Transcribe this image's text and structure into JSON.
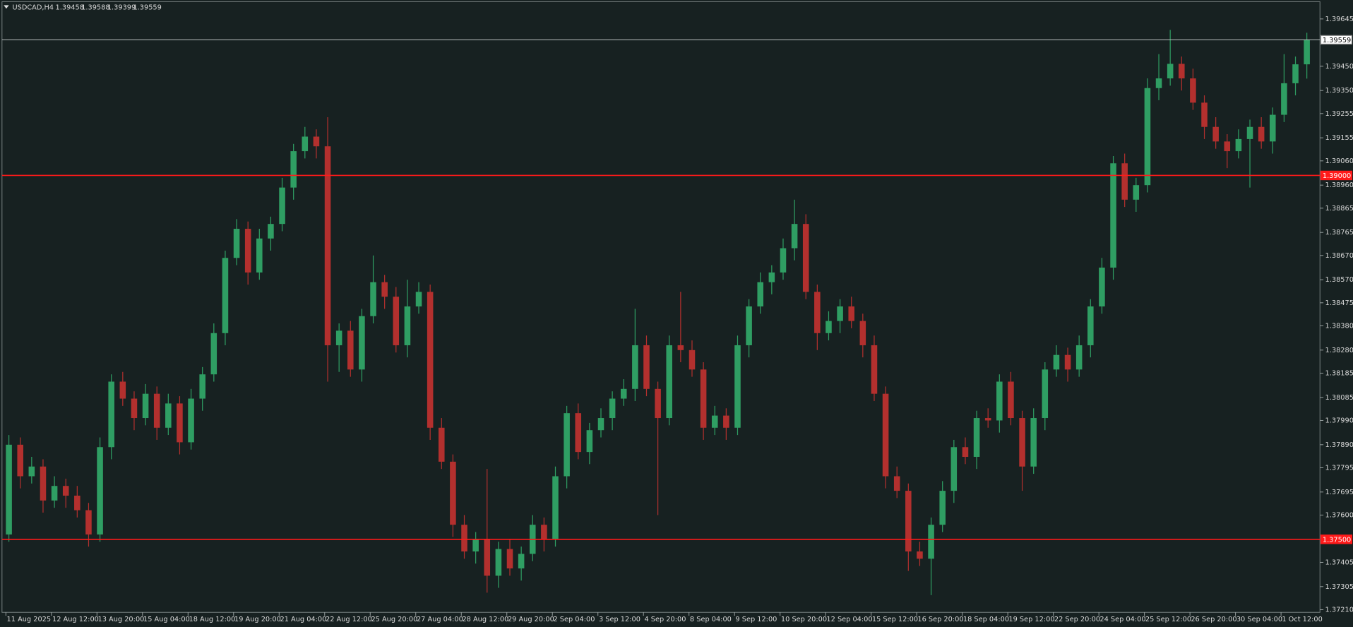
{
  "header": {
    "symbol": "USDCAD,H4",
    "ohlc": [
      1.39458,
      1.39588,
      1.39399,
      1.39559
    ]
  },
  "chart_data": {
    "type": "candlestick",
    "up_color": "#2f9e63",
    "down_color": "#b3302e",
    "grid": false,
    "ylim": [
      1.37199,
      1.39716
    ],
    "yticks": [
      {
        "value": 1.39645,
        "label": "1.39645"
      },
      {
        "value": 1.3945,
        "label": "1.39450"
      },
      {
        "value": 1.3935,
        "label": "1.39350"
      },
      {
        "value": 1.39255,
        "label": "1.39255"
      },
      {
        "value": 1.39155,
        "label": "1.39155"
      },
      {
        "value": 1.3906,
        "label": "1.39060"
      },
      {
        "value": 1.3896,
        "label": "1.38960"
      },
      {
        "value": 1.38865,
        "label": "1.38865"
      },
      {
        "value": 1.38765,
        "label": "1.38765"
      },
      {
        "value": 1.3867,
        "label": "1.38670"
      },
      {
        "value": 1.3857,
        "label": "1.38570"
      },
      {
        "value": 1.38475,
        "label": "1.38475"
      },
      {
        "value": 1.3838,
        "label": "1.38380"
      },
      {
        "value": 1.3828,
        "label": "1.38280"
      },
      {
        "value": 1.38185,
        "label": "1.38185"
      },
      {
        "value": 1.38085,
        "label": "1.38085"
      },
      {
        "value": 1.3799,
        "label": "1.37990"
      },
      {
        "value": 1.3789,
        "label": "1.37890"
      },
      {
        "value": 1.37795,
        "label": "1.37795"
      },
      {
        "value": 1.37695,
        "label": "1.37695"
      },
      {
        "value": 1.376,
        "label": "1.37600"
      },
      {
        "value": 1.37405,
        "label": "1.37405"
      },
      {
        "value": 1.37305,
        "label": "1.37305"
      },
      {
        "value": 1.3721,
        "label": "1.37210"
      }
    ],
    "price_lines": [
      {
        "value": 1.39559,
        "color": "#b8c0c0"
      },
      {
        "value": 1.39,
        "label": "1.39000",
        "color": "#ff1a1a"
      },
      {
        "value": 1.375,
        "label": "1.37500",
        "color": "#ff1a1a"
      }
    ],
    "categories": [
      "11 Aug 2025",
      null,
      null,
      null,
      "12 Aug 12:00",
      null,
      null,
      null,
      "13 Aug 20:00",
      null,
      null,
      null,
      "15 Aug 04:00",
      null,
      null,
      null,
      "18 Aug 12:00",
      null,
      null,
      null,
      "19 Aug 20:00",
      null,
      null,
      null,
      "21 Aug 04:00",
      null,
      null,
      null,
      "22 Aug 12:00",
      null,
      null,
      null,
      "25 Aug 20:00",
      null,
      null,
      null,
      "27 Aug 04:00",
      null,
      null,
      null,
      "28 Aug 12:00",
      null,
      null,
      null,
      "29 Aug 20:00",
      null,
      null,
      null,
      "2 Sep 04:00",
      null,
      null,
      null,
      "3 Sep 12:00",
      null,
      null,
      null,
      "4 Sep 20:00",
      null,
      null,
      null,
      "8 Sep 04:00",
      null,
      null,
      null,
      "9 Sep 12:00",
      null,
      null,
      null,
      "10 Sep 20:00",
      null,
      null,
      null,
      "12 Sep 04:00",
      null,
      null,
      null,
      "15 Sep 12:00",
      null,
      null,
      null,
      "16 Sep 20:00",
      null,
      null,
      null,
      "18 Sep 04:00",
      null,
      null,
      null,
      "19 Sep 12:00",
      null,
      null,
      null,
      "22 Sep 20:00",
      null,
      null,
      null,
      "24 Sep 04:00",
      null,
      null,
      null,
      "25 Sep 12:00",
      null,
      null,
      null,
      "26 Sep 20:00",
      null,
      null,
      null,
      "30 Sep 04:00",
      null,
      null,
      null,
      "1 Oct 12:00",
      null,
      null
    ],
    "open": [
      1.3752,
      1.3789,
      1.3776,
      1.378,
      1.3766,
      1.3772,
      1.3768,
      1.3762,
      1.3752,
      1.3788,
      1.3815,
      1.3808,
      1.38,
      1.381,
      1.3796,
      1.3806,
      1.379,
      1.3808,
      1.3818,
      1.3835,
      1.3866,
      1.3878,
      1.386,
      1.3874,
      1.388,
      1.3895,
      1.391,
      1.3916,
      1.3912,
      1.383,
      1.3836,
      1.382,
      1.3842,
      1.3856,
      1.385,
      1.383,
      1.3846,
      1.3852,
      1.3796,
      1.3782,
      1.3756,
      1.3745,
      1.375,
      1.3735,
      1.3746,
      1.3738,
      1.3744,
      1.3756,
      1.375,
      1.3776,
      1.3802,
      1.3786,
      1.3795,
      1.38,
      1.3808,
      1.3812,
      1.383,
      1.3812,
      1.38,
      1.383,
      1.3828,
      1.382,
      1.3796,
      1.3801,
      1.3796,
      1.383,
      1.3846,
      1.3856,
      1.386,
      1.387,
      1.388,
      1.3852,
      1.3835,
      1.384,
      1.3846,
      1.384,
      1.383,
      1.381,
      1.3776,
      1.377,
      1.3745,
      1.3742,
      1.3756,
      1.377,
      1.3788,
      1.3784,
      1.38,
      1.3799,
      1.3815,
      1.38,
      1.378,
      1.38,
      1.382,
      1.3826,
      1.382,
      1.383,
      1.3846,
      1.3862,
      1.3905,
      1.389,
      1.3896,
      1.3936,
      1.394,
      1.3946,
      1.394,
      1.393,
      1.392,
      1.3914,
      1.391,
      1.3915,
      1.392,
      1.3914,
      1.3925,
      1.3938,
      1.39458
    ],
    "high": [
      1.3793,
      1.3792,
      1.3784,
      1.3783,
      1.3776,
      1.3775,
      1.3772,
      1.3765,
      1.3792,
      1.3818,
      1.3819,
      1.3811,
      1.3814,
      1.3813,
      1.381,
      1.3809,
      1.3812,
      1.3821,
      1.3839,
      1.3869,
      1.3882,
      1.3881,
      1.3878,
      1.3883,
      1.3899,
      1.3913,
      1.392,
      1.3919,
      1.3924,
      1.3839,
      1.384,
      1.3845,
      1.3867,
      1.3859,
      1.3854,
      1.3857,
      1.3856,
      1.3855,
      1.38,
      1.3785,
      1.376,
      1.3753,
      1.3779,
      1.3749,
      1.375,
      1.3747,
      1.376,
      1.3759,
      1.378,
      1.3805,
      1.3806,
      1.3798,
      1.3804,
      1.3811,
      1.3816,
      1.3845,
      1.3834,
      1.3815,
      1.3834,
      1.3852,
      1.3832,
      1.3823,
      1.3805,
      1.3804,
      1.3834,
      1.3849,
      1.386,
      1.3863,
      1.3874,
      1.389,
      1.3884,
      1.3855,
      1.3844,
      1.3849,
      1.385,
      1.3843,
      1.3834,
      1.3813,
      1.378,
      1.3773,
      1.3749,
      1.3759,
      1.3774,
      1.3791,
      1.3792,
      1.3803,
      1.3804,
      1.3818,
      1.3819,
      1.3803,
      1.3804,
      1.3823,
      1.383,
      1.3829,
      1.3834,
      1.3849,
      1.3866,
      1.3908,
      1.3909,
      1.3899,
      1.394,
      1.395,
      1.396,
      1.3949,
      1.3944,
      1.3933,
      1.3924,
      1.3917,
      1.3919,
      1.3923,
      1.3924,
      1.3928,
      1.395,
      1.3949,
      1.39588
    ],
    "low": [
      1.3749,
      1.3771,
      1.3773,
      1.3761,
      1.3763,
      1.3763,
      1.3759,
      1.3747,
      1.3749,
      1.3783,
      1.3805,
      1.3795,
      1.3797,
      1.3791,
      1.3793,
      1.3785,
      1.3787,
      1.3803,
      1.3815,
      1.383,
      1.3863,
      1.3855,
      1.3857,
      1.3869,
      1.3877,
      1.389,
      1.3907,
      1.3907,
      1.3815,
      1.3819,
      1.3817,
      1.3815,
      1.3839,
      1.3845,
      1.3827,
      1.3825,
      1.3843,
      1.3791,
      1.3779,
      1.3751,
      1.3742,
      1.374,
      1.3728,
      1.373,
      1.3735,
      1.3733,
      1.3741,
      1.3745,
      1.3747,
      1.3771,
      1.3783,
      1.3781,
      1.3792,
      1.3795,
      1.3805,
      1.3807,
      1.3809,
      1.376,
      1.3797,
      1.3823,
      1.3817,
      1.3791,
      1.3793,
      1.3791,
      1.3793,
      1.3825,
      1.3843,
      1.3851,
      1.3857,
      1.3865,
      1.3849,
      1.3828,
      1.3832,
      1.3835,
      1.3837,
      1.3825,
      1.3807,
      1.3771,
      1.3767,
      1.3737,
      1.3739,
      1.3727,
      1.3753,
      1.3765,
      1.3781,
      1.3779,
      1.3796,
      1.3794,
      1.3797,
      1.377,
      1.3777,
      1.3795,
      1.3817,
      1.3815,
      1.3817,
      1.3825,
      1.3843,
      1.3857,
      1.3887,
      1.3885,
      1.3893,
      1.3931,
      1.3937,
      1.3935,
      1.3927,
      1.3915,
      1.3911,
      1.3903,
      1.3907,
      1.3895,
      1.3911,
      1.3909,
      1.3922,
      1.3933,
      1.39399
    ],
    "close": [
      1.3789,
      1.3776,
      1.378,
      1.3766,
      1.3772,
      1.3768,
      1.3762,
      1.3752,
      1.3788,
      1.3815,
      1.3808,
      1.38,
      1.381,
      1.3796,
      1.3806,
      1.379,
      1.3808,
      1.3818,
      1.3835,
      1.3866,
      1.3878,
      1.386,
      1.3874,
      1.388,
      1.3895,
      1.391,
      1.3916,
      1.3912,
      1.383,
      1.3836,
      1.382,
      1.3842,
      1.3856,
      1.385,
      1.383,
      1.3846,
      1.3852,
      1.3796,
      1.3782,
      1.3756,
      1.3745,
      1.375,
      1.3735,
      1.3746,
      1.3738,
      1.3744,
      1.3756,
      1.375,
      1.3776,
      1.3802,
      1.3786,
      1.3795,
      1.38,
      1.3808,
      1.3812,
      1.383,
      1.3812,
      1.38,
      1.383,
      1.3828,
      1.382,
      1.3796,
      1.3801,
      1.3796,
      1.383,
      1.3846,
      1.3856,
      1.386,
      1.387,
      1.388,
      1.3852,
      1.3835,
      1.384,
      1.3846,
      1.384,
      1.383,
      1.381,
      1.3776,
      1.377,
      1.3745,
      1.3742,
      1.3756,
      1.377,
      1.3788,
      1.3784,
      1.38,
      1.3799,
      1.3815,
      1.38,
      1.378,
      1.38,
      1.382,
      1.3826,
      1.382,
      1.383,
      1.3846,
      1.3862,
      1.3905,
      1.389,
      1.3896,
      1.3936,
      1.394,
      1.3946,
      1.394,
      1.393,
      1.392,
      1.3914,
      1.391,
      1.3915,
      1.392,
      1.3914,
      1.3925,
      1.3938,
      1.39458,
      1.39559
    ]
  }
}
